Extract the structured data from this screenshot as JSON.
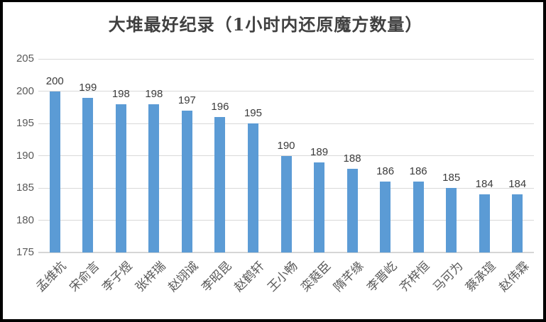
{
  "colors": {
    "bar": "#5b9bd5",
    "gridline": "#d9d9d9",
    "title_text": "#404040",
    "axis_text": "#595959",
    "value_text": "#3b3b3b",
    "frame_border": "#000000",
    "background": "#ffffff"
  },
  "chart_data": {
    "type": "bar",
    "title": "大堆最好纪录（1小时内还原魔方数量）",
    "categories": [
      "孟维杭",
      "宋俞言",
      "李子煜",
      "张梓瑞",
      "赵翊诚",
      "李昭昆",
      "赵鹤轩",
      "王小畅",
      "栾蕤臣",
      "隋芊缘",
      "李晋屹",
      "齐梓恒",
      "马可为",
      "蔡承瑄",
      "赵伟霖"
    ],
    "values": [
      200,
      199,
      198,
      198,
      197,
      196,
      195,
      190,
      189,
      188,
      186,
      186,
      185,
      184,
      184
    ],
    "data_labels": [
      200,
      199,
      198,
      198,
      197,
      196,
      195,
      190,
      189,
      188,
      186,
      186,
      185,
      184,
      184
    ],
    "xlabel": "",
    "ylabel": "",
    "ylim": [
      175,
      205
    ],
    "yticks": [
      175,
      180,
      185,
      190,
      195,
      200,
      205
    ],
    "grid": true,
    "legend": false
  }
}
